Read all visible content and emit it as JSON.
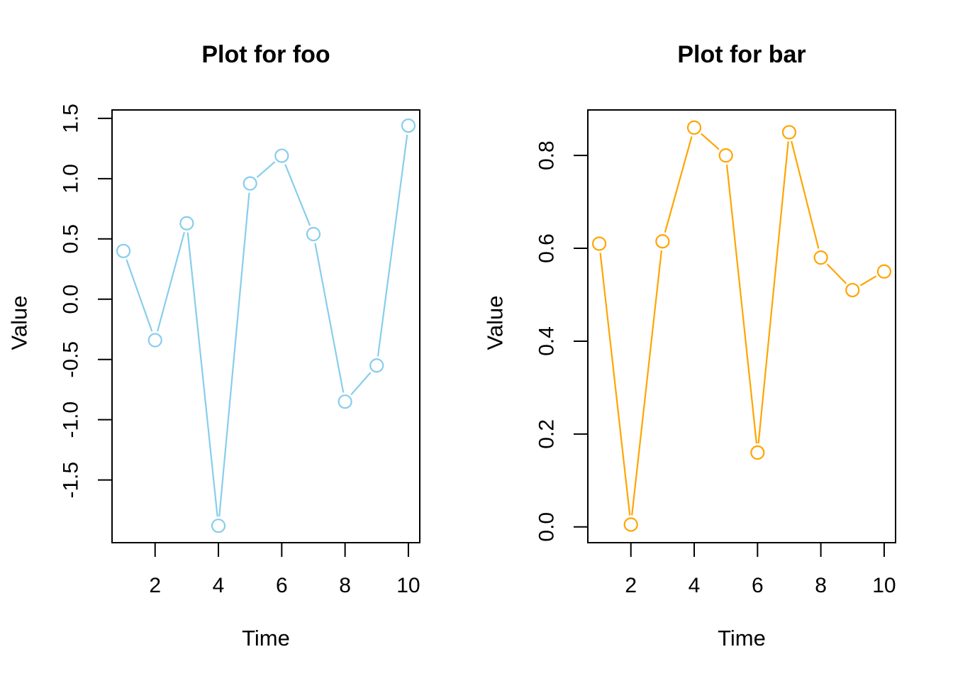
{
  "figure": {
    "background": "#ffffff",
    "axis_color": "#000000"
  },
  "chart_data": [
    {
      "type": "line",
      "title": "Plot for foo",
      "xlabel": "Time",
      "ylabel": "Value",
      "x": [
        1,
        2,
        3,
        4,
        5,
        6,
        7,
        8,
        9,
        10
      ],
      "values": [
        0.4,
        -0.34,
        0.63,
        -1.88,
        0.96,
        1.19,
        0.54,
        -0.85,
        -0.55,
        1.44
      ],
      "series_name": "foo",
      "color": "#87CEEB",
      "marker": "open-circle",
      "line_style": "points-and-segments",
      "grid": false,
      "legend": "none",
      "xlim": [
        0.64,
        10.36
      ],
      "ylim": [
        -2.02,
        1.57
      ],
      "xticks": [
        2,
        4,
        6,
        8,
        10
      ],
      "xtick_labels": [
        "2",
        "4",
        "6",
        "8",
        "10"
      ],
      "yticks": [
        -1.5,
        -1.0,
        -0.5,
        0.0,
        0.5,
        1.0,
        1.5
      ],
      "ytick_labels": [
        "-1.5",
        "-1.0",
        "-0.5",
        "0.0",
        "0.5",
        "1.0",
        "1.5"
      ]
    },
    {
      "type": "line",
      "title": "Plot for bar",
      "xlabel": "Time",
      "ylabel": "Value",
      "x": [
        1,
        2,
        3,
        4,
        5,
        6,
        7,
        8,
        9,
        10
      ],
      "values": [
        0.61,
        0.005,
        0.615,
        0.86,
        0.8,
        0.16,
        0.85,
        0.58,
        0.51,
        0.55
      ],
      "series_name": "bar",
      "color": "#FFA500",
      "marker": "open-circle",
      "line_style": "points-and-segments",
      "grid": false,
      "legend": "none",
      "xlim": [
        0.64,
        10.36
      ],
      "ylim": [
        -0.034,
        0.898
      ],
      "xticks": [
        2,
        4,
        6,
        8,
        10
      ],
      "xtick_labels": [
        "2",
        "4",
        "6",
        "8",
        "10"
      ],
      "yticks": [
        0.0,
        0.2,
        0.4,
        0.6,
        0.8
      ],
      "ytick_labels": [
        "0.0",
        "0.2",
        "0.4",
        "0.6",
        "0.8"
      ]
    }
  ]
}
